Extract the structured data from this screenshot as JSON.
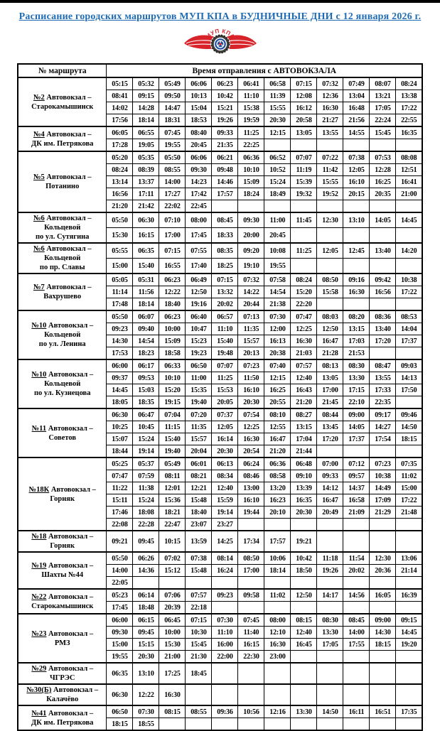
{
  "page_title": "Расписание городских маршрутов МУП КПА в БУДНИЧНЫЕ ДНИ с 12 января 2026 г.",
  "colors": {
    "title_blue": "#1f6cb5",
    "logo_red": "#d8232a",
    "logo_navy": "#1d4f9e",
    "tire_dark": "#3b3b3b"
  },
  "logo": {
    "arc_text": "МУП КПА"
  },
  "table": {
    "col1_header": "№ маршрута",
    "times_header": "Время отправления с АВТОВОКЗАЛА",
    "num_time_columns": 12,
    "routes": [
      {
        "number": "№2",
        "name_lines": [
          "Автовокзал –",
          "Старокамышинск"
        ],
        "rows": [
          [
            "05:15",
            "05:32",
            "05:49",
            "06:06",
            "06:23",
            "06:41",
            "06:58",
            "07:15",
            "07:32",
            "07:49",
            "08:07",
            "08:24"
          ],
          [
            "08:41",
            "09:15",
            "09:50",
            "10:13",
            "10:42",
            "11:10",
            "11:39",
            "12:08",
            "12:36",
            "13:04",
            "13:21",
            "13:38"
          ],
          [
            "14:02",
            "14:28",
            "14:47",
            "15:04",
            "15:21",
            "15:38",
            "15:55",
            "16:12",
            "16:30",
            "16:48",
            "17:05",
            "17:22"
          ],
          [
            "17:56",
            "18:14",
            "18:31",
            "18:53",
            "19:26",
            "19:59",
            "20:30",
            "20:58",
            "21:27",
            "21:56",
            "22:24",
            "22:55"
          ]
        ]
      },
      {
        "number": "№4",
        "name_lines": [
          "Автовокзал –",
          "ДК им. Петрякова"
        ],
        "rows": [
          [
            "06:05",
            "06:55",
            "07:45",
            "08:40",
            "09:33",
            "11:25",
            "12:15",
            "13:05",
            "13:55",
            "14:55",
            "15:45",
            "16:35"
          ],
          [
            "17:28",
            "19:05",
            "19:55",
            "20:45",
            "21:35",
            "22:25"
          ]
        ]
      },
      {
        "number": "№5",
        "name_lines": [
          "Автовокзал –",
          "Потанино"
        ],
        "rows": [
          [
            "05:20",
            "05:35",
            "05:50",
            "06:06",
            "06:21",
            "06:36",
            "06:52",
            "07:07",
            "07:22",
            "07:38",
            "07:53",
            "08:08"
          ],
          [
            "08:24",
            "08:39",
            "08:55",
            "09:30",
            "09:48",
            "10:10",
            "10:52",
            "11:19",
            "11:42",
            "12:05",
            "12:28",
            "12:51"
          ],
          [
            "13:14",
            "13:37",
            "14:00",
            "14:23",
            "14:46",
            "15:09",
            "15:24",
            "15:39",
            "15:55",
            "16:10",
            "16:25",
            "16:41"
          ],
          [
            "16:56",
            "17:11",
            "17:27",
            "17:42",
            "17:57",
            "18:24",
            "18:49",
            "19:32",
            "19:52",
            "20:15",
            "20:35",
            "21:00"
          ],
          [
            "21:20",
            "21:42",
            "22:02",
            "22:45"
          ]
        ]
      },
      {
        "number": "№6",
        "name_lines": [
          "Автовокзал –",
          "Кольцевой",
          "по ул. Сутягина"
        ],
        "rows": [
          [
            "05:50",
            "06:30",
            "07:10",
            "08:00",
            "08:45",
            "09:30",
            "11:00",
            "11:45",
            "12:30",
            "13:10",
            "14:05",
            "14:45"
          ],
          [
            "15:30",
            "16:15",
            "17:00",
            "17:45",
            "18:33",
            "20:00",
            "20:45"
          ]
        ]
      },
      {
        "number": "№6",
        "name_lines": [
          "Автовокзал –",
          "Кольцевой",
          "по пр. Славы"
        ],
        "rows": [
          [
            "05:55",
            "06:35",
            "07:15",
            "07:55",
            "08:35",
            "09:20",
            "10:08",
            "11:25",
            "12:05",
            "12:45",
            "13:40",
            "14:20"
          ],
          [
            "15:00",
            "15:40",
            "16:55",
            "17:40",
            "18:25",
            "19:10",
            "19:55"
          ]
        ]
      },
      {
        "number": "№7",
        "name_lines": [
          "Автовокзал –",
          "Вахрушево"
        ],
        "rows": [
          [
            "05:05",
            "05:31",
            "06:23",
            "06:49",
            "07:15",
            "07:32",
            "07:58",
            "08:24",
            "08:50",
            "09:16",
            "09:42",
            "10:38"
          ],
          [
            "11:14",
            "11:56",
            "12:22",
            "12:50",
            "13:32",
            "14:22",
            "14:54",
            "15:20",
            "15:58",
            "16:30",
            "16:56",
            "17:22"
          ],
          [
            "17:48",
            "18:14",
            "18:40",
            "19:16",
            "20:02",
            "20:44",
            "21:38",
            "22:20"
          ]
        ]
      },
      {
        "number": "№10",
        "name_lines": [
          "Автовокзал –",
          "Кольцевой",
          "по ул. Ленина"
        ],
        "rows": [
          [
            "05:50",
            "06:07",
            "06:23",
            "06:40",
            "06:57",
            "07:13",
            "07:30",
            "07:47",
            "08:03",
            "08:20",
            "08:36",
            "08:53"
          ],
          [
            "09:23",
            "09:40",
            "10:00",
            "10:47",
            "11:10",
            "11:35",
            "12:00",
            "12:25",
            "12:50",
            "13:15",
            "13:40",
            "14:04"
          ],
          [
            "14:30",
            "14:54",
            "15:09",
            "15:23",
            "15:40",
            "15:57",
            "16:13",
            "16:30",
            "16:47",
            "17:03",
            "17:20",
            "17:37"
          ],
          [
            "17:53",
            "18:23",
            "18:58",
            "19:23",
            "19:48",
            "20:13",
            "20:38",
            "21:03",
            "21:28",
            "21:53"
          ]
        ]
      },
      {
        "number": "№10",
        "name_lines": [
          "Автовокзал –",
          "Кольцевой",
          "по ул. Кузнецова"
        ],
        "rows": [
          [
            "06:00",
            "06:17",
            "06:33",
            "06:50",
            "07:07",
            "07:23",
            "07:40",
            "07:57",
            "08:13",
            "08:30",
            "08:47",
            "09:03"
          ],
          [
            "09:37",
            "09:53",
            "10:10",
            "11:00",
            "11:25",
            "11:50",
            "12:15",
            "12:40",
            "13:05",
            "13:30",
            "13:55",
            "14:13"
          ],
          [
            "14:45",
            "15:03",
            "15:20",
            "15:35",
            "15:53",
            "16:10",
            "16:25",
            "16:43",
            "17:00",
            "17:15",
            "17:33",
            "17:50"
          ],
          [
            "18:05",
            "18:35",
            "19:15",
            "19:40",
            "20:05",
            "20:30",
            "20:55",
            "21:20",
            "21:45",
            "22:10",
            "22:35"
          ]
        ]
      },
      {
        "number": "№11",
        "name_lines": [
          "Автовокзал –",
          "Советов"
        ],
        "rows": [
          [
            "06:30",
            "06:47",
            "07:04",
            "07:20",
            "07:37",
            "07:54",
            "08:10",
            "08:27",
            "08:44",
            "09:00",
            "09:17",
            "09:46"
          ],
          [
            "10:25",
            "10:45",
            "11:15",
            "11:35",
            "12:05",
            "12:25",
            "12:55",
            "13:15",
            "13:45",
            "14:05",
            "14:27",
            "14:50"
          ],
          [
            "15:07",
            "15:24",
            "15:40",
            "15:57",
            "16:14",
            "16:30",
            "16:47",
            "17:04",
            "17:20",
            "17:37",
            "17:54",
            "18:15"
          ],
          [
            "18:44",
            "19:14",
            "19:40",
            "20:04",
            "20:30",
            "20:54",
            "21:20",
            "21:44"
          ]
        ]
      },
      {
        "number": "№18К",
        "name_lines": [
          "Автовокзал –",
          "Горняк"
        ],
        "rows": [
          [
            "05:25",
            "05:37",
            "05:49",
            "06:01",
            "06:13",
            "06:24",
            "06:36",
            "06:48",
            "07:00",
            "07:12",
            "07:23",
            "07:35"
          ],
          [
            "07:47",
            "07:59",
            "08:11",
            "08:21",
            "08:34",
            "08:46",
            "08:58",
            "09:10",
            "09:33",
            "09:57",
            "10:38",
            "11:02"
          ],
          [
            "11:22",
            "11:38",
            "12:01",
            "12:21",
            "12:40",
            "13:00",
            "13:20",
            "13:39",
            "14:12",
            "14:37",
            "14:49",
            "15:00"
          ],
          [
            "15:11",
            "15:24",
            "15:36",
            "15:48",
            "15:59",
            "16:10",
            "16:23",
            "16:35",
            "16:47",
            "16:58",
            "17:09",
            "17:22"
          ],
          [
            "17:46",
            "18:08",
            "18:21",
            "18:40",
            "19:14",
            "19:44",
            "20:10",
            "20:30",
            "20:49",
            "21:09",
            "21:29",
            "21:48"
          ],
          [
            "22:08",
            "22:28",
            "22:47",
            "23:07",
            "23:27"
          ]
        ]
      },
      {
        "number": "№18",
        "name_lines": [
          "Автовокзал –",
          "Горняк"
        ],
        "rows": [
          [
            "09:21",
            "09:45",
            "10:15",
            "13:59",
            "14:25",
            "17:34",
            "17:57",
            "19:21"
          ]
        ]
      },
      {
        "number": "№19",
        "name_lines": [
          "Автовокзал –",
          "Шахты №44"
        ],
        "rows": [
          [
            "05:50",
            "06:26",
            "07:02",
            "07:38",
            "08:14",
            "08:50",
            "10:06",
            "10:42",
            "11:18",
            "11:54",
            "12:30",
            "13:06"
          ],
          [
            "14:00",
            "14:36",
            "15:12",
            "15:48",
            "16:24",
            "17:00",
            "18:14",
            "18:50",
            "19:26",
            "20:02",
            "20:36",
            "21:14"
          ],
          [
            "22:05"
          ]
        ]
      },
      {
        "number": "№22",
        "name_lines": [
          "Автовокзал –",
          "Старокамышинск"
        ],
        "rows": [
          [
            "05:23",
            "06:14",
            "07:06",
            "07:57",
            "09:23",
            "09:58",
            "11:02",
            "12:50",
            "14:17",
            "14:56",
            "16:05",
            "16:39"
          ],
          [
            "17:45",
            "18:48",
            "20:39",
            "22:18"
          ]
        ]
      },
      {
        "number": "№23",
        "name_lines": [
          "Автовокзал –",
          "РМЗ"
        ],
        "rows": [
          [
            "06:00",
            "06:15",
            "06:45",
            "07:15",
            "07:30",
            "07:45",
            "08:00",
            "08:15",
            "08:30",
            "08:45",
            "09:00",
            "09:15"
          ],
          [
            "09:30",
            "09:45",
            "10:00",
            "10:30",
            "11:10",
            "11:40",
            "12:10",
            "12:40",
            "13:30",
            "14:00",
            "14:30",
            "14:45"
          ],
          [
            "15:00",
            "15:15",
            "15:30",
            "15:45",
            "16:00",
            "16:15",
            "16:30",
            "16:45",
            "17:05",
            "17:55",
            "18:15",
            "19:20"
          ],
          [
            "19:55",
            "20:30",
            "21:00",
            "21:30",
            "22:00",
            "22:30",
            "23:00"
          ]
        ]
      },
      {
        "number": "№29",
        "name_lines": [
          "Автовокзал –",
          "ЧГРЭС"
        ],
        "rows": [
          [
            "06:35",
            "13:10",
            "17:25",
            "18:45"
          ]
        ]
      },
      {
        "number": "№30(Б)",
        "name_lines": [
          "Автовокзал –",
          "Калачёво"
        ],
        "rows": [
          [
            "06:30",
            "12:22",
            "16:30"
          ]
        ]
      },
      {
        "number": "№41",
        "name_lines": [
          "Автовокзал –",
          "ДК им. Петрякова"
        ],
        "rows": [
          [
            "06:50",
            "07:30",
            "08:15",
            "08:55",
            "09:36",
            "10:56",
            "12:16",
            "13:30",
            "14:50",
            "16:11",
            "16:51",
            "17:35"
          ],
          [
            "18:15",
            "18:55"
          ]
        ]
      }
    ]
  }
}
